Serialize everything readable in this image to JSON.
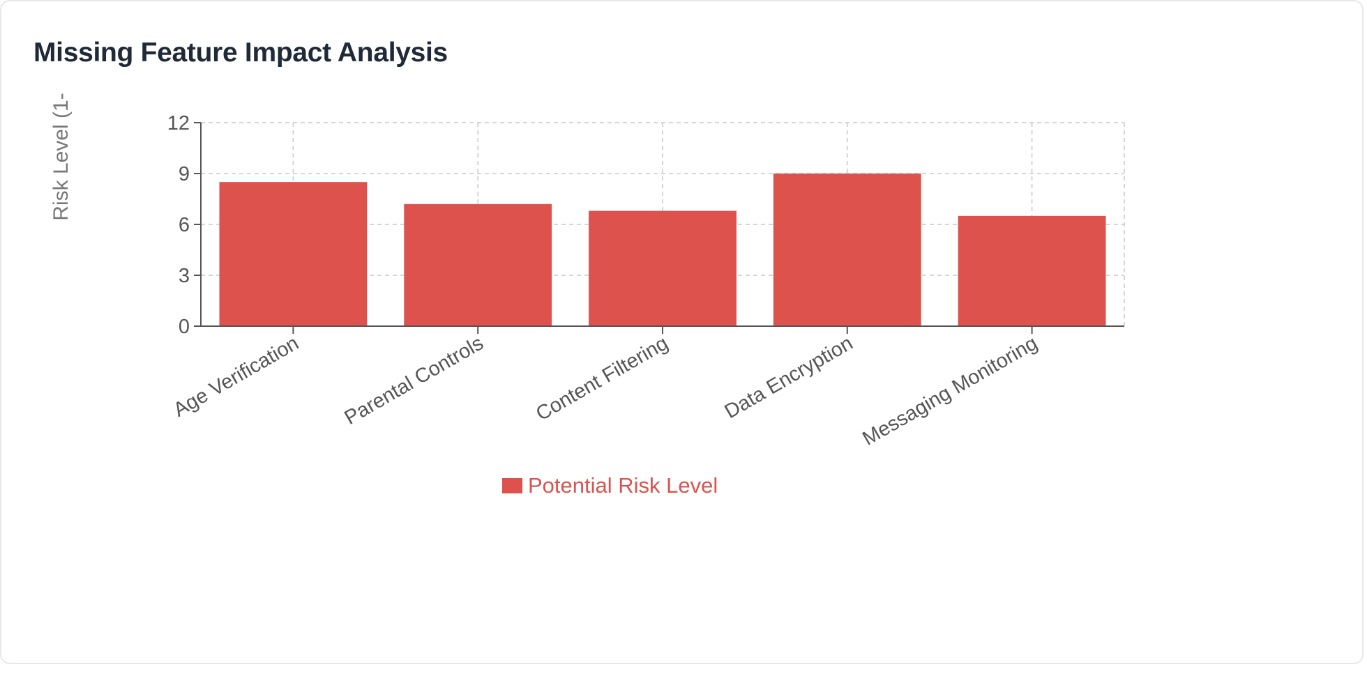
{
  "chart_data": {
    "type": "bar",
    "title": "Missing Feature Impact Analysis",
    "ylabel": "Risk Level (1-",
    "xlabel": "",
    "categories": [
      "Age Verification",
      "Parental Controls",
      "Content Filtering",
      "Data Encryption",
      "Messaging Monitoring"
    ],
    "series": [
      {
        "name": "Potential Risk Level",
        "values": [
          8.5,
          7.2,
          6.8,
          9.0,
          6.5
        ],
        "color": "#de524e"
      }
    ],
    "ylim": [
      0,
      12
    ],
    "yticks": [
      "0",
      "3",
      "6",
      "9",
      "12"
    ],
    "grid": true,
    "legend_position": "bottom"
  }
}
